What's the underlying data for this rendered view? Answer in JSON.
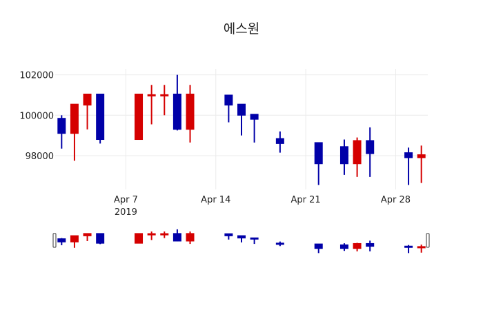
{
  "chart_data": {
    "type": "candlestick",
    "title": "에스원",
    "xlabel": "",
    "ylabel": "",
    "x_tick_labels": [
      "Apr 7\n2019",
      "Apr 14",
      "Apr 21",
      "Apr 28"
    ],
    "x_tick_dates": [
      "2019-04-07",
      "2019-04-14",
      "2019-04-21",
      "2019-04-28"
    ],
    "y_tick_labels": [
      "98000",
      "100000",
      "102000"
    ],
    "y_ticks": [
      98000,
      100000,
      102000
    ],
    "ylim": [
      96450,
      102300
    ],
    "xlim": [
      "2019-04-01T12:00",
      "2019-04-30T12:00"
    ],
    "grid": true,
    "legend": "none",
    "rangeslider": true,
    "colors": {
      "increasing": "#d50000",
      "decreasing": "#0000a8",
      "grid": "#ebebeb",
      "text": "#222222"
    },
    "candles": [
      {
        "date": "2019-04-02",
        "open": 99850,
        "high": 100000,
        "low": 98350,
        "close": 99100
      },
      {
        "date": "2019-04-03",
        "open": 99100,
        "high": 100550,
        "low": 97750,
        "close": 100550
      },
      {
        "date": "2019-04-04",
        "open": 100500,
        "high": 101050,
        "low": 99300,
        "close": 101050
      },
      {
        "date": "2019-04-05",
        "open": 101050,
        "high": 101050,
        "low": 98600,
        "close": 98800
      },
      {
        "date": "2019-04-08",
        "open": 98800,
        "high": 101050,
        "low": 98800,
        "close": 101050
      },
      {
        "date": "2019-04-09",
        "open": 100980,
        "high": 101500,
        "low": 99550,
        "close": 101020
      },
      {
        "date": "2019-04-10",
        "open": 100980,
        "high": 101500,
        "low": 100000,
        "close": 101020
      },
      {
        "date": "2019-04-11",
        "open": 101050,
        "high": 102000,
        "low": 99250,
        "close": 99300
      },
      {
        "date": "2019-04-12",
        "open": 99300,
        "high": 101500,
        "low": 98650,
        "close": 101050
      },
      {
        "date": "2019-04-15",
        "open": 101000,
        "high": 101000,
        "low": 99650,
        "close": 100500
      },
      {
        "date": "2019-04-16",
        "open": 100550,
        "high": 100550,
        "low": 99000,
        "close": 100000
      },
      {
        "date": "2019-04-17",
        "open": 100050,
        "high": 100050,
        "low": 98650,
        "close": 99800
      },
      {
        "date": "2019-04-19",
        "open": 98850,
        "high": 99200,
        "low": 98150,
        "close": 98600
      },
      {
        "date": "2019-04-22",
        "open": 98650,
        "high": 98650,
        "low": 96550,
        "close": 97600
      },
      {
        "date": "2019-04-24",
        "open": 98450,
        "high": 98800,
        "low": 97050,
        "close": 97600
      },
      {
        "date": "2019-04-25",
        "open": 97600,
        "high": 98900,
        "low": 96950,
        "close": 98750
      },
      {
        "date": "2019-04-26",
        "open": 98750,
        "high": 99400,
        "low": 96950,
        "close": 98100
      },
      {
        "date": "2019-04-29",
        "open": 98150,
        "high": 98400,
        "low": 96550,
        "close": 97900
      },
      {
        "date": "2019-04-30",
        "open": 97900,
        "high": 98500,
        "low": 96650,
        "close": 98050
      }
    ]
  }
}
